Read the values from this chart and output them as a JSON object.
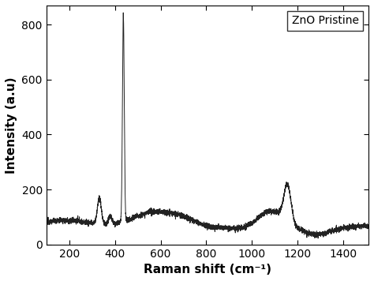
{
  "title": "",
  "xlabel": "Raman shift (cm⁻¹)",
  "ylabel": "Intensity (a.u)",
  "legend_label": "ZnO Pristine",
  "xlim": [
    100,
    1510
  ],
  "ylim": [
    0,
    870
  ],
  "xticks": [
    200,
    400,
    600,
    800,
    1000,
    1200,
    1400
  ],
  "yticks": [
    0,
    200,
    400,
    600,
    800
  ],
  "line_color": "#222222",
  "line_width": 0.7,
  "background_color": "#ffffff",
  "noise_amplitude": 5,
  "baseline": 62
}
